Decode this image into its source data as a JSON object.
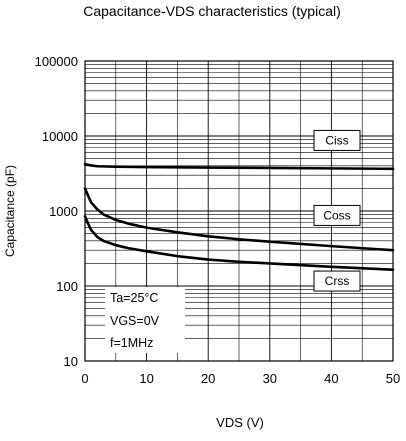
{
  "chart_data": {
    "type": "line",
    "title": "Capacitance-VDS characteristics (typical)",
    "xlabel": "VDS (V)",
    "ylabel": "Capacitance (pF)",
    "xlim": [
      0,
      50
    ],
    "ylim": [
      10,
      100000
    ],
    "yscale": "log",
    "grid": true,
    "x_ticks": [
      "0",
      "10",
      "20",
      "30",
      "40",
      "50"
    ],
    "y_ticks": [
      "10",
      "100",
      "1000",
      "10000",
      "100000"
    ],
    "series": [
      {
        "name": "Ciss",
        "x": [
          0,
          1,
          2,
          5,
          10,
          20,
          30,
          40,
          50
        ],
        "y": [
          4200,
          4050,
          3950,
          3900,
          3850,
          3800,
          3750,
          3700,
          3650
        ]
      },
      {
        "name": "Coss",
        "x": [
          0,
          0.5,
          1,
          2,
          3,
          5,
          7,
          10,
          15,
          20,
          25,
          30,
          40,
          50
        ],
        "y": [
          2000,
          1600,
          1300,
          1050,
          900,
          760,
          680,
          600,
          520,
          460,
          420,
          390,
          340,
          300
        ]
      },
      {
        "name": "Crss",
        "x": [
          0,
          0.5,
          1,
          2,
          3,
          5,
          7,
          10,
          15,
          20,
          25,
          30,
          40,
          50
        ],
        "y": [
          850,
          680,
          560,
          450,
          400,
          350,
          320,
          290,
          250,
          225,
          210,
          200,
          180,
          165
        ]
      }
    ],
    "annotations": [
      "Ta=25°C",
      "VGS=0V",
      "f=1MHz"
    ]
  }
}
